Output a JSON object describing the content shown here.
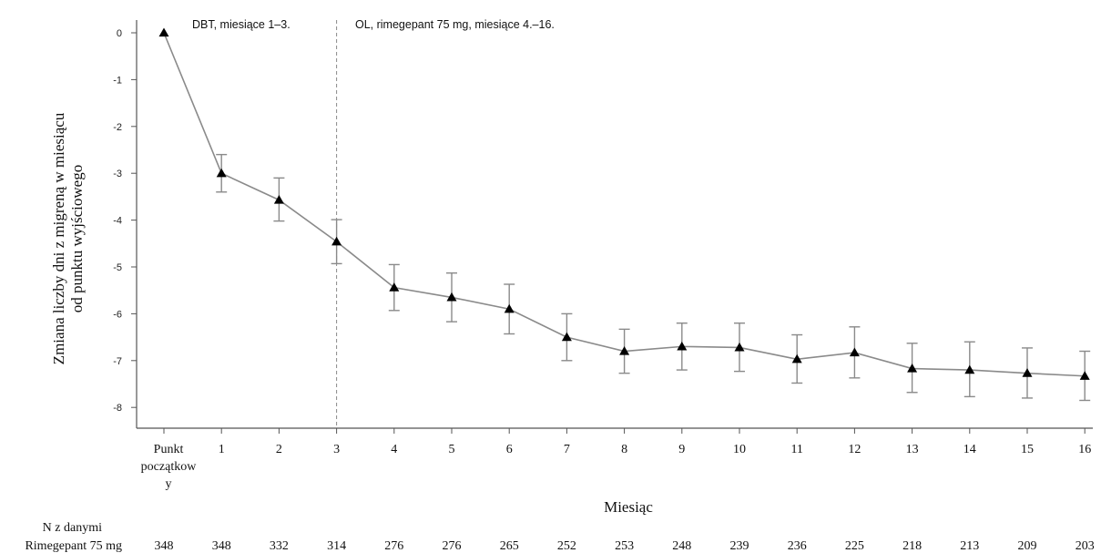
{
  "chart_data": {
    "type": "line",
    "title": "",
    "ylabel_lines": [
      "Zmiana liczby dni z migreną w miesiącu",
      "od punktu wyjściowego"
    ],
    "xlabel": "Miesiąc",
    "ylim": [
      -8,
      0
    ],
    "yticks": [
      "0",
      "-1",
      "-2",
      "-3",
      "-4",
      "-5",
      "-6",
      "-7",
      "-8"
    ],
    "categories": [
      "Punkt początkowy",
      "1",
      "2",
      "3",
      "4",
      "5",
      "6",
      "7",
      "8",
      "9",
      "10",
      "11",
      "12",
      "13",
      "14",
      "15",
      "16"
    ],
    "baseline_label_lines": [
      "Punkt",
      "początkow",
      "y"
    ],
    "values": [
      0,
      -3.0,
      -3.57,
      -4.46,
      -5.44,
      -5.65,
      -5.9,
      -6.5,
      -6.8,
      -6.7,
      -6.72,
      -6.97,
      -6.83,
      -7.17,
      -7.2,
      -7.27,
      -7.33
    ],
    "error_low": [
      0,
      -3.4,
      -4.02,
      -4.93,
      -5.93,
      -6.17,
      -6.43,
      -7.0,
      -7.27,
      -7.2,
      -7.23,
      -7.48,
      -7.37,
      -7.68,
      -7.77,
      -7.8,
      -7.85
    ],
    "error_high": [
      0,
      -2.6,
      -3.1,
      -3.99,
      -4.95,
      -5.13,
      -5.37,
      -6.0,
      -6.33,
      -6.2,
      -6.2,
      -6.45,
      -6.28,
      -6.63,
      -6.6,
      -6.73,
      -6.8
    ],
    "marker": "triangle",
    "grid": false,
    "annotations": {
      "divider_after_category": "3",
      "left": "DBT, miesiące 1–3.",
      "right": "OL, rimegepant 75 mg, miesiące 4.–16."
    },
    "n_table": {
      "header": "N z danymi",
      "row_label": "Rimegepant 75 mg",
      "values": [
        "348",
        "348",
        "332",
        "314",
        "276",
        "276",
        "265",
        "252",
        "253",
        "248",
        "239",
        "236",
        "225",
        "218",
        "213",
        "209",
        "203"
      ]
    },
    "colors": {
      "line": "#8a8a8a",
      "marker": "#000000",
      "axis": "#555555",
      "divider": "#888888"
    }
  }
}
